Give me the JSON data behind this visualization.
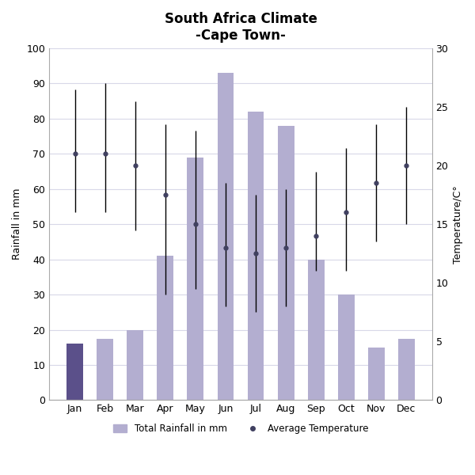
{
  "title": "South Africa Climate\n-Cape Town-",
  "months": [
    "Jan",
    "Feb",
    "Mar",
    "Apr",
    "May",
    "Jun",
    "Jul",
    "Aug",
    "Sep",
    "Oct",
    "Nov",
    "Dec"
  ],
  "rainfall": [
    16,
    17.5,
    20,
    41,
    69,
    93,
    82,
    78,
    40,
    30,
    15,
    17.5
  ],
  "bar_color_jan": "#5b508a",
  "bar_color_rest": "#b3aed0",
  "avg_temp": [
    21,
    21,
    20,
    17.5,
    15,
    13,
    12.5,
    13,
    14,
    16,
    18.5,
    20
  ],
  "temp_high": [
    26.5,
    27,
    25.5,
    23.5,
    23,
    18.5,
    17.5,
    18,
    19.5,
    21.5,
    23.5,
    25
  ],
  "temp_low": [
    16,
    16,
    14.5,
    9,
    9.5,
    8,
    7.5,
    8,
    11,
    11,
    13.5,
    15
  ],
  "ylabel_left": "Rainfall in mm",
  "ylabel_right": "Temperature/C°",
  "ylim_left": [
    0,
    100
  ],
  "ylim_right": [
    0,
    30
  ],
  "yticks_left": [
    0,
    10,
    20,
    30,
    40,
    50,
    60,
    70,
    80,
    90,
    100
  ],
  "yticks_right": [
    0,
    5,
    10,
    15,
    20,
    25,
    30
  ],
  "legend_rainfall": "Total Rainfall in mm",
  "legend_temp": "Average Temperature",
  "background_color": "#ffffff",
  "grid_color": "#d8d8e8"
}
